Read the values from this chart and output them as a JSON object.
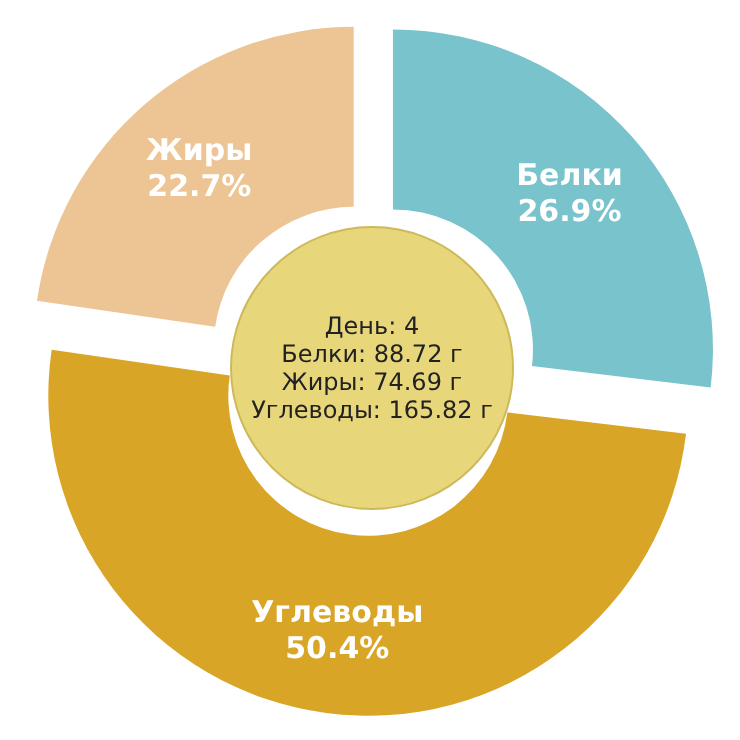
{
  "chart_data": {
    "type": "donut",
    "categories": [
      "Белки",
      "Углеводы",
      "Жиры"
    ],
    "values": [
      26.9,
      50.4,
      22.7
    ],
    "colors": [
      "#79c3cc",
      "#d9a526",
      "#edc493"
    ],
    "annotations": [
      "День: 4",
      "Белки: 88.72 г",
      "Жиры: 74.69 г",
      "Углеводы: 165.82 г"
    ],
    "value_labels": [
      "26.9%",
      "50.4%",
      "22.7%"
    ],
    "legend": false
  }
}
